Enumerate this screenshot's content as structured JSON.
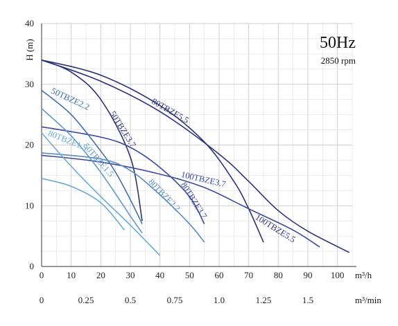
{
  "chart_data": {
    "type": "line",
    "annotation_main": "50Hz",
    "annotation_sub": "2850 rpm",
    "ylabel": "H (m)",
    "xlabel_primary": "m³/h",
    "xlabel_secondary": "m³/min",
    "xlim": [
      0,
      105
    ],
    "ylim": [
      0,
      40
    ],
    "y_ticks": [
      "0",
      "10",
      "20",
      "30",
      "40"
    ],
    "x_ticks": [
      "0",
      "10",
      "20",
      "30",
      "40",
      "50",
      "60",
      "70",
      "80",
      "90",
      "100"
    ],
    "x2_ticks": [
      "0",
      "0.25",
      "0.5",
      "0.75",
      "1.0",
      "1.25",
      "1.5"
    ],
    "grid": true,
    "series": [
      {
        "name": "80TBZE5.5",
        "color": "#2b3177",
        "x": [
          0,
          20,
          40,
          60,
          70,
          80,
          90,
          104
        ],
        "y": [
          34,
          30.5,
          25.5,
          18.5,
          14,
          9.2,
          5.8,
          2.3
        ]
      },
      {
        "name": "100TBZE5.5",
        "color": "#2b3177",
        "x": [
          0,
          20,
          40,
          55,
          65,
          70,
          75
        ],
        "y": [
          34,
          31.5,
          26.5,
          20.5,
          14,
          9.5,
          4
        ]
      },
      {
        "name": "50TBZE3.7",
        "color": "#2b3177",
        "x": [
          0,
          10,
          20,
          30,
          34
        ],
        "y": [
          34,
          32,
          27.5,
          18,
          7.5
        ]
      },
      {
        "name": "100TBZE3.7",
        "color": "#3a4a9e",
        "x": [
          0,
          20,
          40,
          55,
          70,
          85,
          94
        ],
        "y": [
          18.3,
          17.2,
          15.2,
          13,
          9.5,
          6,
          3.2
        ]
      },
      {
        "name": "80TBZE3.7",
        "color": "#3a4a9e",
        "x": [
          0,
          20,
          30,
          40,
          50,
          55
        ],
        "y": [
          23,
          21.3,
          19.6,
          16.3,
          11.5,
          7
        ]
      },
      {
        "name": "50TBZE2.2",
        "color": "#3f6fa8",
        "x": [
          0,
          10,
          20,
          25,
          30,
          34
        ],
        "y": [
          29,
          25,
          19,
          15.5,
          11,
          7
        ]
      },
      {
        "name": "80TBZE2.2",
        "color": "#5a8cc0",
        "x": [
          0,
          20,
          30,
          40,
          50,
          55
        ],
        "y": [
          18.7,
          17.7,
          15.8,
          11.8,
          7,
          4
        ]
      },
      {
        "name": "50TBZE1.5",
        "color": "#5f98cc",
        "x": [
          0,
          10,
          20,
          30,
          34
        ],
        "y": [
          26,
          21.5,
          15.5,
          8.3,
          5.5
        ]
      },
      {
        "name": "80TBZE1.5",
        "color": "#6aaad8",
        "x": [
          0,
          10,
          20,
          30,
          40
        ],
        "y": [
          22,
          16.5,
          11.5,
          6.8,
          1.8
        ]
      },
      {
        "name": "",
        "color": "#6aaad8",
        "x": [
          0,
          10,
          20,
          28
        ],
        "y": [
          14.5,
          13.2,
          10.5,
          6
        ]
      }
    ]
  }
}
